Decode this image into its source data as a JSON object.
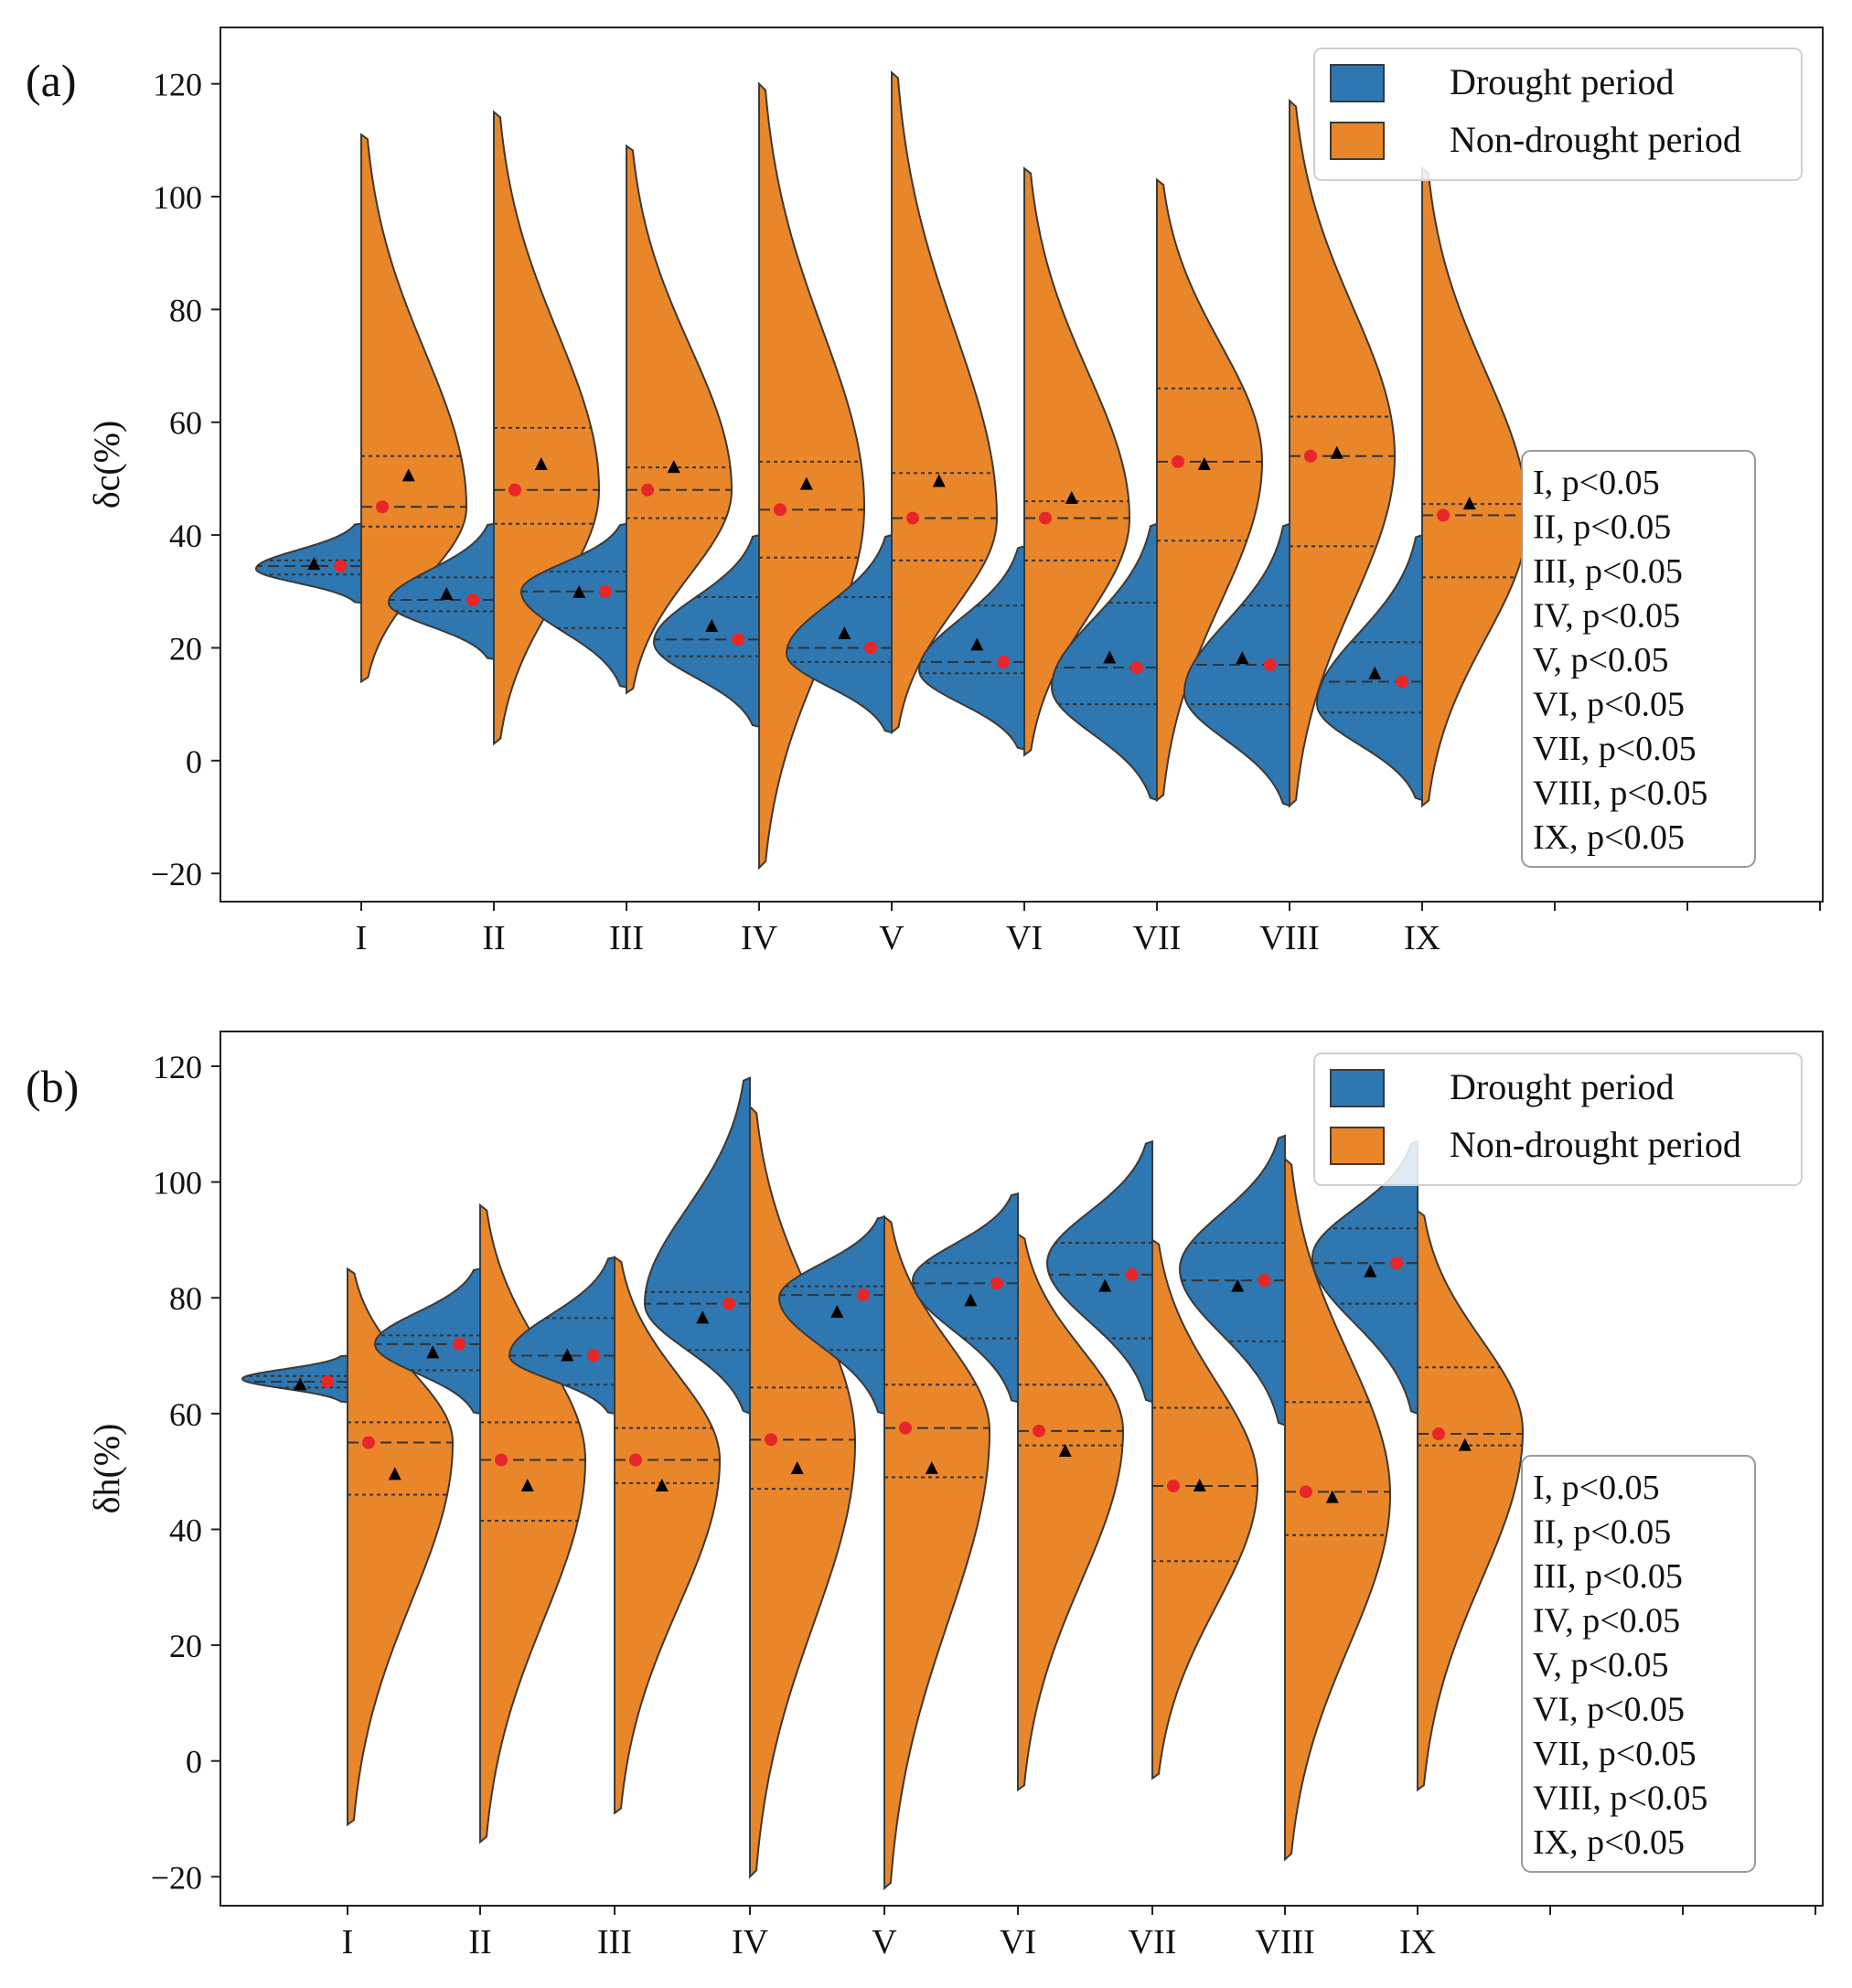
{
  "figure": {
    "colors": {
      "drought": "#2e77b0",
      "nondrought": "#e9862a",
      "outline": "#3a3a3a",
      "median_dot": "#e8262a",
      "mean_marker": "#000000"
    }
  },
  "chart_data": [
    {
      "type": "violin",
      "panel_label": "(a)",
      "ylabel": "δc(%)",
      "ylim": [
        -25,
        130
      ],
      "yticks": [
        -20,
        0,
        20,
        40,
        60,
        80,
        100,
        120
      ],
      "ytick_labels": [
        "−20",
        "0",
        "20",
        "40",
        "60",
        "80",
        "100",
        "120"
      ],
      "categories": [
        "I",
        "II",
        "III",
        "IV",
        "V",
        "VI",
        "VII",
        "VIII",
        "IX"
      ],
      "legend": {
        "position": "top-right",
        "entries": [
          "Drought period",
          "Non-drought period"
        ]
      },
      "annotation": [
        "I, p<0.05",
        "II, p<0.05",
        "III, p<0.05",
        "IV, p<0.05",
        "V, p<0.05",
        "VI, p<0.05",
        "VII, p<0.05",
        "VIII, p<0.05",
        "IX, p<0.05"
      ],
      "series": [
        {
          "name": "Drought period",
          "min": [
            28,
            18,
            13,
            6,
            5,
            2,
            -7,
            -8,
            -7
          ],
          "max": [
            42,
            42,
            42,
            40,
            40,
            38,
            42,
            42,
            40
          ],
          "mode": [
            34,
            28,
            30,
            21,
            19,
            16,
            13,
            12,
            10
          ],
          "q1": [
            33,
            26.5,
            23.5,
            18.5,
            17.5,
            15.5,
            10,
            10,
            8.5
          ],
          "median": [
            34.5,
            28.5,
            30,
            21.5,
            20,
            17.5,
            16.5,
            17,
            14
          ],
          "q3": [
            35.5,
            32.5,
            33.5,
            29,
            29,
            27.5,
            28,
            27.5,
            21
          ],
          "mean": [
            34.8,
            29.5,
            29.8,
            23.8,
            22.5,
            20.5,
            18.2,
            18.1,
            15.4
          ]
        },
        {
          "name": "Non-drought period",
          "min": [
            14,
            3,
            12,
            -19,
            5,
            1,
            -7,
            -8,
            -8
          ],
          "max": [
            111,
            115,
            109,
            120,
            122,
            105,
            103,
            117,
            105
          ],
          "mode": [
            45,
            48,
            48,
            45,
            43,
            43,
            53,
            54,
            43
          ],
          "q1": [
            41.5,
            42,
            43,
            36,
            35.5,
            35.5,
            39,
            38,
            32.5
          ],
          "median": [
            45,
            48,
            48,
            44.5,
            43,
            43,
            53,
            54,
            43.5
          ],
          "q3": [
            54,
            59,
            52,
            53,
            51,
            46,
            66,
            61,
            45.5
          ],
          "mean": [
            50.5,
            52.5,
            52,
            49,
            49.5,
            46.5,
            52.5,
            54.5,
            45.5
          ]
        }
      ]
    },
    {
      "type": "violin",
      "panel_label": "(b)",
      "ylabel": "δh(%)",
      "ylim": [
        -25,
        126
      ],
      "yticks": [
        -20,
        0,
        20,
        40,
        60,
        80,
        100,
        120
      ],
      "ytick_labels": [
        "−20",
        "0",
        "20",
        "40",
        "60",
        "80",
        "100",
        "120"
      ],
      "categories": [
        "I",
        "II",
        "III",
        "IV",
        "V",
        "VI",
        "VII",
        "VIII",
        "IX"
      ],
      "legend": {
        "position": "top-right",
        "entries": [
          "Drought period",
          "Non-drought period"
        ]
      },
      "annotation": [
        "I, p<0.05",
        "II, p<0.05",
        "III, p<0.05",
        "IV, p<0.05",
        "V, p<0.05",
        "VI, p<0.05",
        "VII, p<0.05",
        "VIII, p<0.05",
        "IX, p<0.05"
      ],
      "series": [
        {
          "name": "Drought period",
          "min": [
            62,
            60,
            60,
            60,
            60,
            62,
            62,
            58,
            60
          ],
          "max": [
            70,
            85,
            87,
            118,
            94,
            98,
            107,
            108,
            107
          ],
          "mode": [
            66,
            72,
            70,
            79,
            80,
            83,
            86,
            85,
            87
          ],
          "q1": [
            64.5,
            67.5,
            65,
            71,
            71,
            73,
            73,
            72.5,
            79
          ],
          "median": [
            65.5,
            72,
            70,
            79,
            80.5,
            82.5,
            84,
            83,
            86
          ],
          "q3": [
            66.5,
            73.5,
            76.5,
            81,
            82,
            86,
            89.5,
            89.5,
            92
          ],
          "mean": [
            65,
            70.5,
            70,
            76.5,
            77.5,
            79.5,
            82,
            82,
            84.5
          ]
        },
        {
          "name": "Non-drought period",
          "min": [
            -11,
            -14,
            -9,
            -20,
            -22,
            -5,
            -3,
            -17,
            -5
          ],
          "max": [
            85,
            96,
            87,
            113,
            94,
            91,
            90,
            104,
            95
          ],
          "mode": [
            55,
            52,
            52,
            55,
            57,
            57,
            48,
            46,
            57
          ],
          "q1": [
            46,
            41.5,
            48,
            47,
            49,
            54.5,
            34.5,
            39,
            54.5
          ],
          "median": [
            55,
            52,
            52,
            55.5,
            57.5,
            57,
            47.5,
            46.5,
            56.5
          ],
          "q3": [
            58.5,
            58.5,
            57.5,
            64.5,
            65,
            65,
            61,
            62,
            68
          ],
          "mean": [
            49.5,
            47.5,
            47.5,
            50.5,
            50.5,
            53.5,
            47.5,
            45.5,
            54.5
          ]
        }
      ]
    }
  ]
}
